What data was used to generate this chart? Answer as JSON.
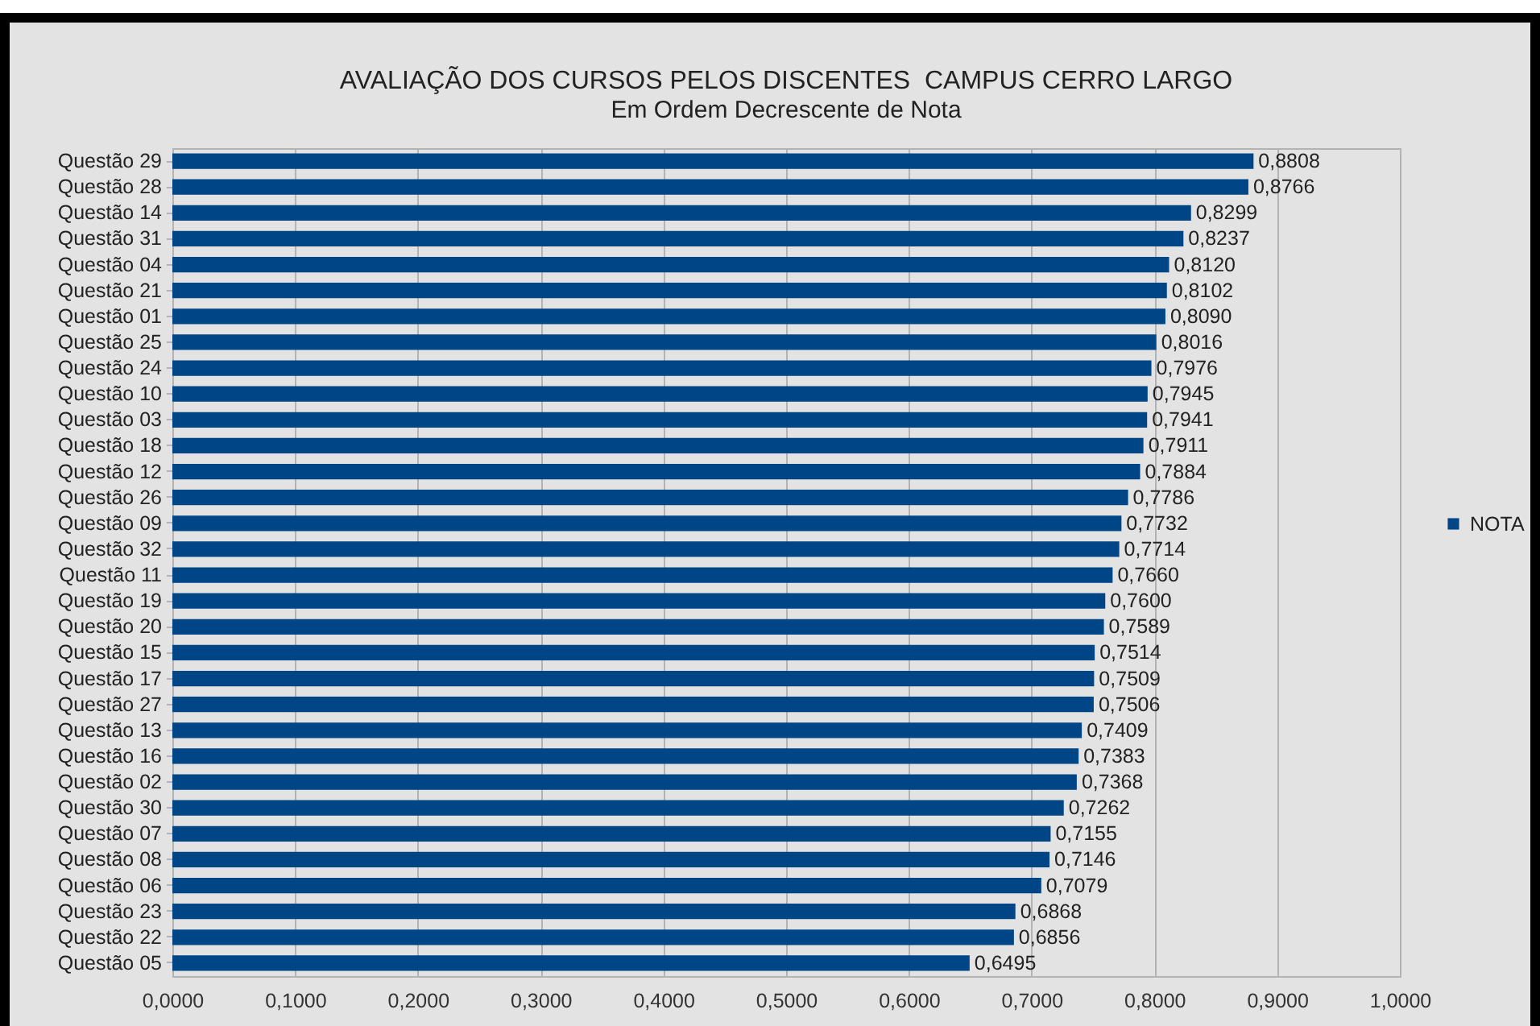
{
  "chart_data": {
    "type": "bar",
    "orientation": "horizontal",
    "title": "AVALIAÇÃO DOS CURSOS PELOS DISCENTES  CAMPUS CERRO LARGO",
    "subtitle": "Em Ordem Decrescente de Nota",
    "categories": [
      "Questão 29",
      "Questão 28",
      "Questão 14",
      "Questão 31",
      "Questão 04",
      "Questão 21",
      "Questão 01",
      "Questão 25",
      "Questão 24",
      "Questão 10",
      "Questão 03",
      "Questão 18",
      "Questão 12",
      "Questão 26",
      "Questão 09",
      "Questão 32",
      "Questão 11",
      "Questão 19",
      "Questão 20",
      "Questão 15",
      "Questão 17",
      "Questão 27",
      "Questão 13",
      "Questão 16",
      "Questão 02",
      "Questão 30",
      "Questão 07",
      "Questão 08",
      "Questão 06",
      "Questão 23",
      "Questão 22",
      "Questão 05"
    ],
    "series": [
      {
        "name": "NOTA",
        "color": "#004586",
        "values": [
          0.8808,
          0.8766,
          0.8299,
          0.8237,
          0.812,
          0.8102,
          0.809,
          0.8016,
          0.7976,
          0.7945,
          0.7941,
          0.7911,
          0.7884,
          0.7786,
          0.7732,
          0.7714,
          0.766,
          0.76,
          0.7589,
          0.7514,
          0.7509,
          0.7506,
          0.7409,
          0.7383,
          0.7368,
          0.7262,
          0.7155,
          0.7146,
          0.7079,
          0.6868,
          0.6856,
          0.6495
        ],
        "value_labels": [
          "0,8808",
          "0,8766",
          "0,8299",
          "0,8237",
          "0,8120",
          "0,8102",
          "0,8090",
          "0,8016",
          "0,7976",
          "0,7945",
          "0,7941",
          "0,7911",
          "0,7884",
          "0,7786",
          "0,7732",
          "0,7714",
          "0,7660",
          "0,7600",
          "0,7589",
          "0,7514",
          "0,7509",
          "0,7506",
          "0,7409",
          "0,7383",
          "0,7368",
          "0,7262",
          "0,7155",
          "0,7146",
          "0,7079",
          "0,6868",
          "0,6856",
          "0,6495"
        ]
      }
    ],
    "xlim": [
      0,
      1
    ],
    "xticks": [
      {
        "value": 0,
        "label": "0,0000"
      },
      {
        "value": 0.1,
        "label": "0,1000"
      },
      {
        "value": 0.2,
        "label": "0,2000"
      },
      {
        "value": 0.3,
        "label": "0,3000"
      },
      {
        "value": 0.4,
        "label": "0,4000"
      },
      {
        "value": 0.5,
        "label": "0,5000"
      },
      {
        "value": 0.6,
        "label": "0,6000"
      },
      {
        "value": 0.7,
        "label": "0,7000"
      },
      {
        "value": 0.8,
        "label": "0,8000"
      },
      {
        "value": 0.9,
        "label": "0,9000"
      },
      {
        "value": 1,
        "label": "1,0000"
      }
    ],
    "grid": "x",
    "legend": "right"
  }
}
